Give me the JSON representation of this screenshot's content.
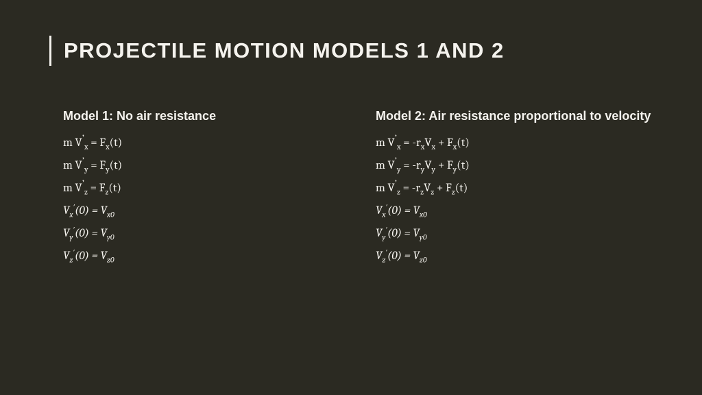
{
  "background_color": "#2b2a22",
  "text_color": "#f5f3ee",
  "title": "PROJECTILE MOTION MODELS 1 AND 2",
  "title_fontsize": 31,
  "subhead_fontsize": 18,
  "eq_fontsize": 17,
  "columns": {
    "left": {
      "heading": "Model 1: No air resistance",
      "plain_eqs": [
        {
          "lhs_var": "V",
          "lhs_sub": "x",
          "rhs_pre": "",
          "rhs_F_sub": "x"
        },
        {
          "lhs_var": "V",
          "lhs_sub": "y",
          "rhs_pre": "",
          "rhs_F_sub": "y"
        },
        {
          "lhs_var": "V",
          "lhs_sub": "z",
          "rhs_pre": "",
          "rhs_F_sub": "z"
        }
      ],
      "init_eqs": [
        {
          "sub": "x",
          "rhs_sub": "x0"
        },
        {
          "sub": "y",
          "rhs_sub": "y0"
        },
        {
          "sub": "z",
          "rhs_sub": "z0"
        }
      ]
    },
    "right": {
      "heading": "Model 2: Air resistance proportional to velocity",
      "plain_eqs": [
        {
          "lhs_var": "V",
          "lhs_sub": "x",
          "r_sub": "x",
          "v_sub": "x",
          "rhs_F_sub": "x"
        },
        {
          "lhs_var": "V",
          "lhs_sub": "y",
          "r_sub": "y",
          "v_sub": "y",
          "rhs_F_sub": "y"
        },
        {
          "lhs_var": "V",
          "lhs_sub": "z",
          "r_sub": "z",
          "v_sub": "z",
          "rhs_F_sub": "z"
        }
      ],
      "init_eqs": [
        {
          "sub": "x",
          "rhs_sub": "x0"
        },
        {
          "sub": "y",
          "rhs_sub": "y0"
        },
        {
          "sub": "z",
          "rhs_sub": "z0"
        }
      ]
    }
  }
}
